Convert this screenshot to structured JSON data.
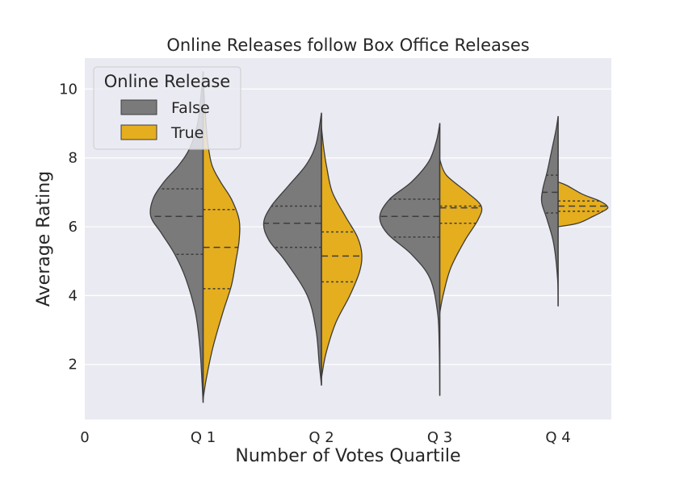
{
  "chart_data": {
    "type": "violin",
    "title": "Online Releases follow Box Office Releases",
    "xlabel": "Number of Votes Quartile",
    "ylabel": "Average Rating",
    "x_ticks": [
      "0",
      "Q 1",
      "Q 2",
      "Q 3",
      "Q 4"
    ],
    "categories": [
      "Q 1",
      "Q 2",
      "Q 3",
      "Q 4"
    ],
    "y_ticks": [
      "2",
      "4",
      "6",
      "8",
      "10"
    ],
    "ylim": [
      0.4,
      10.9
    ],
    "xlim": [
      0,
      4.45
    ],
    "split": true,
    "grid": true,
    "legend": {
      "title": "Online Release",
      "position": "top-left",
      "entries": [
        {
          "label": "False",
          "color": "#7a7a7a"
        },
        {
          "label": "True",
          "color": "#e5ae1f"
        }
      ]
    },
    "series": [
      {
        "name": "False",
        "color": "#7a7a7a",
        "side": "left",
        "violins": [
          {
            "category": "Q 1",
            "min": 0.9,
            "max": 10.5,
            "q1": 5.2,
            "median": 6.3,
            "q3": 7.1,
            "profile": [
              [
                0.9,
                0
              ],
              [
                1.5,
                0.01
              ],
              [
                2.5,
                0.03
              ],
              [
                3.5,
                0.07
              ],
              [
                4.5,
                0.16
              ],
              [
                5.2,
                0.26
              ],
              [
                5.8,
                0.38
              ],
              [
                6.3,
                0.48
              ],
              [
                6.8,
                0.46
              ],
              [
                7.3,
                0.36
              ],
              [
                7.8,
                0.22
              ],
              [
                8.3,
                0.12
              ],
              [
                9.0,
                0.05
              ],
              [
                9.8,
                0.02
              ],
              [
                10.5,
                0
              ]
            ]
          },
          {
            "category": "Q 2",
            "min": 1.4,
            "max": 9.3,
            "q1": 5.4,
            "median": 6.1,
            "q3": 6.6,
            "profile": [
              [
                1.4,
                0
              ],
              [
                2.0,
                0.02
              ],
              [
                3.0,
                0.05
              ],
              [
                4.0,
                0.13
              ],
              [
                5.0,
                0.33
              ],
              [
                5.6,
                0.48
              ],
              [
                6.1,
                0.53
              ],
              [
                6.6,
                0.46
              ],
              [
                7.2,
                0.3
              ],
              [
                7.8,
                0.14
              ],
              [
                8.4,
                0.05
              ],
              [
                9.3,
                0
              ]
            ]
          },
          {
            "category": "Q 3",
            "min": 1.1,
            "max": 9.0,
            "q1": 5.7,
            "median": 6.3,
            "q3": 6.8,
            "profile": [
              [
                1.1,
                0
              ],
              [
                2.5,
                0.005
              ],
              [
                3.5,
                0.02
              ],
              [
                4.5,
                0.09
              ],
              [
                5.2,
                0.26
              ],
              [
                5.8,
                0.48
              ],
              [
                6.3,
                0.55
              ],
              [
                6.8,
                0.46
              ],
              [
                7.3,
                0.26
              ],
              [
                7.9,
                0.1
              ],
              [
                8.5,
                0.03
              ],
              [
                9.0,
                0
              ]
            ]
          },
          {
            "category": "Q 4",
            "min": 3.7,
            "max": 9.2,
            "q1": 6.4,
            "median": 7.0,
            "q3": 7.5,
            "profile": [
              [
                3.7,
                0
              ],
              [
                4.5,
                0.005
              ],
              [
                5.5,
                0.04
              ],
              [
                6.2,
                0.1
              ],
              [
                6.7,
                0.15
              ],
              [
                7.1,
                0.14
              ],
              [
                7.6,
                0.1
              ],
              [
                8.2,
                0.06
              ],
              [
                8.8,
                0.02
              ],
              [
                9.2,
                0
              ]
            ]
          }
        ]
      },
      {
        "name": "True",
        "color": "#e5ae1f",
        "side": "right",
        "violins": [
          {
            "category": "Q 1",
            "min": 1.0,
            "max": 10.3,
            "q1": 4.2,
            "median": 5.4,
            "q3": 6.5,
            "profile": [
              [
                1.0,
                0
              ],
              [
                1.6,
                0.03
              ],
              [
                2.5,
                0.09
              ],
              [
                3.5,
                0.18
              ],
              [
                4.3,
                0.26
              ],
              [
                5.0,
                0.3
              ],
              [
                5.6,
                0.33
              ],
              [
                6.2,
                0.33
              ],
              [
                6.8,
                0.26
              ],
              [
                7.3,
                0.16
              ],
              [
                7.8,
                0.08
              ],
              [
                8.5,
                0.04
              ],
              [
                9.3,
                0.02
              ],
              [
                10.3,
                0
              ]
            ]
          },
          {
            "category": "Q 2",
            "min": 1.6,
            "max": 8.9,
            "q1": 4.4,
            "median": 5.15,
            "q3": 5.85,
            "profile": [
              [
                1.6,
                0
              ],
              [
                2.3,
                0.04
              ],
              [
                3.2,
                0.13
              ],
              [
                4.0,
                0.26
              ],
              [
                4.7,
                0.35
              ],
              [
                5.2,
                0.37
              ],
              [
                5.7,
                0.33
              ],
              [
                6.3,
                0.22
              ],
              [
                7.0,
                0.1
              ],
              [
                7.7,
                0.05
              ],
              [
                8.3,
                0.02
              ],
              [
                8.9,
                0
              ]
            ]
          },
          {
            "category": "Q 3",
            "min": 3.5,
            "max": 7.95,
            "q1": 6.1,
            "median": 6.55,
            "q3": 6.6,
            "profile": [
              [
                3.5,
                0
              ],
              [
                4.0,
                0.03
              ],
              [
                4.8,
                0.1
              ],
              [
                5.6,
                0.23
              ],
              [
                6.2,
                0.35
              ],
              [
                6.6,
                0.38
              ],
              [
                7.0,
                0.25
              ],
              [
                7.5,
                0.06
              ],
              [
                7.95,
                0
              ]
            ]
          },
          {
            "category": "Q 4",
            "min": 6.0,
            "max": 7.3,
            "q1": 6.45,
            "median": 6.6,
            "q3": 6.75,
            "profile": [
              [
                6.0,
                0
              ],
              [
                6.1,
                0.18
              ],
              [
                6.3,
                0.32
              ],
              [
                6.5,
                0.44
              ],
              [
                6.6,
                0.45
              ],
              [
                6.75,
                0.38
              ],
              [
                6.95,
                0.22
              ],
              [
                7.2,
                0.08
              ],
              [
                7.3,
                0
              ]
            ]
          }
        ]
      }
    ]
  }
}
